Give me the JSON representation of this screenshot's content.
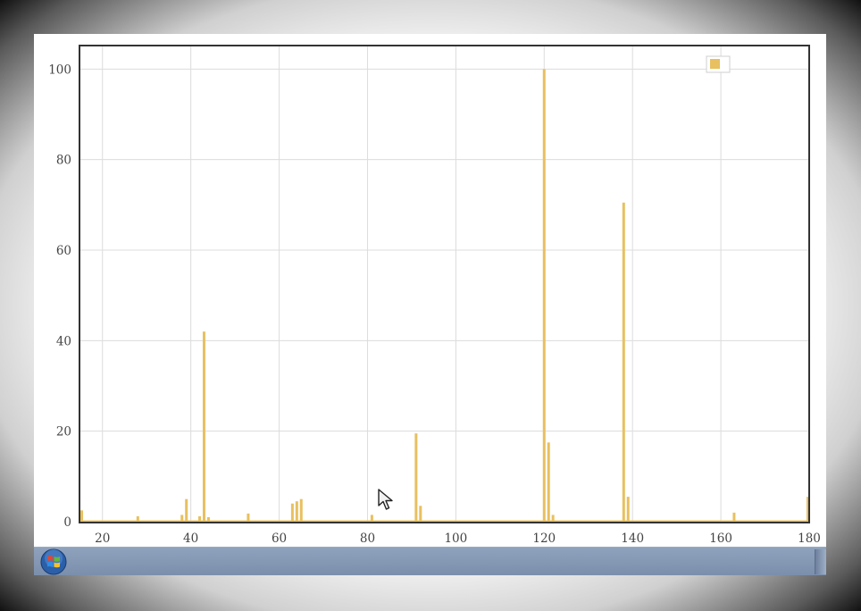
{
  "colors": {
    "series": "#e8c060",
    "grid": "#dcdcdc",
    "axes": "#444444",
    "taskbar": "#7f92ae"
  },
  "icons": [
    "windows-start-orb-icon",
    "mouse-cursor-icon",
    "legend-swatch-icon"
  ],
  "chart_data": {
    "type": "bar",
    "title": "",
    "xlabel": "",
    "ylabel": "",
    "xlim": [
      15,
      180
    ],
    "ylim": [
      0,
      105
    ],
    "grid": true,
    "legend_position": "top-right",
    "x_ticks": [
      20,
      40,
      60,
      80,
      100,
      120,
      140,
      160,
      180
    ],
    "y_ticks": [
      0,
      20,
      40,
      60,
      80,
      100
    ],
    "series": [
      {
        "color": "#e8c060",
        "points": [
          {
            "x": 15,
            "y": 2.5
          },
          {
            "x": 28,
            "y": 1.2
          },
          {
            "x": 38,
            "y": 1.5
          },
          {
            "x": 39,
            "y": 5
          },
          {
            "x": 42,
            "y": 1.2
          },
          {
            "x": 43,
            "y": 42
          },
          {
            "x": 44,
            "y": 1
          },
          {
            "x": 53,
            "y": 1.8
          },
          {
            "x": 63,
            "y": 4
          },
          {
            "x": 64,
            "y": 4.5
          },
          {
            "x": 65,
            "y": 5
          },
          {
            "x": 81,
            "y": 1.5
          },
          {
            "x": 91,
            "y": 19.5
          },
          {
            "x": 92,
            "y": 3.5
          },
          {
            "x": 120,
            "y": 100
          },
          {
            "x": 121,
            "y": 17.5
          },
          {
            "x": 122,
            "y": 1.5
          },
          {
            "x": 138,
            "y": 70.5
          },
          {
            "x": 139,
            "y": 5.5
          },
          {
            "x": 163,
            "y": 2
          },
          {
            "x": 180,
            "y": 5.5
          }
        ]
      }
    ]
  }
}
